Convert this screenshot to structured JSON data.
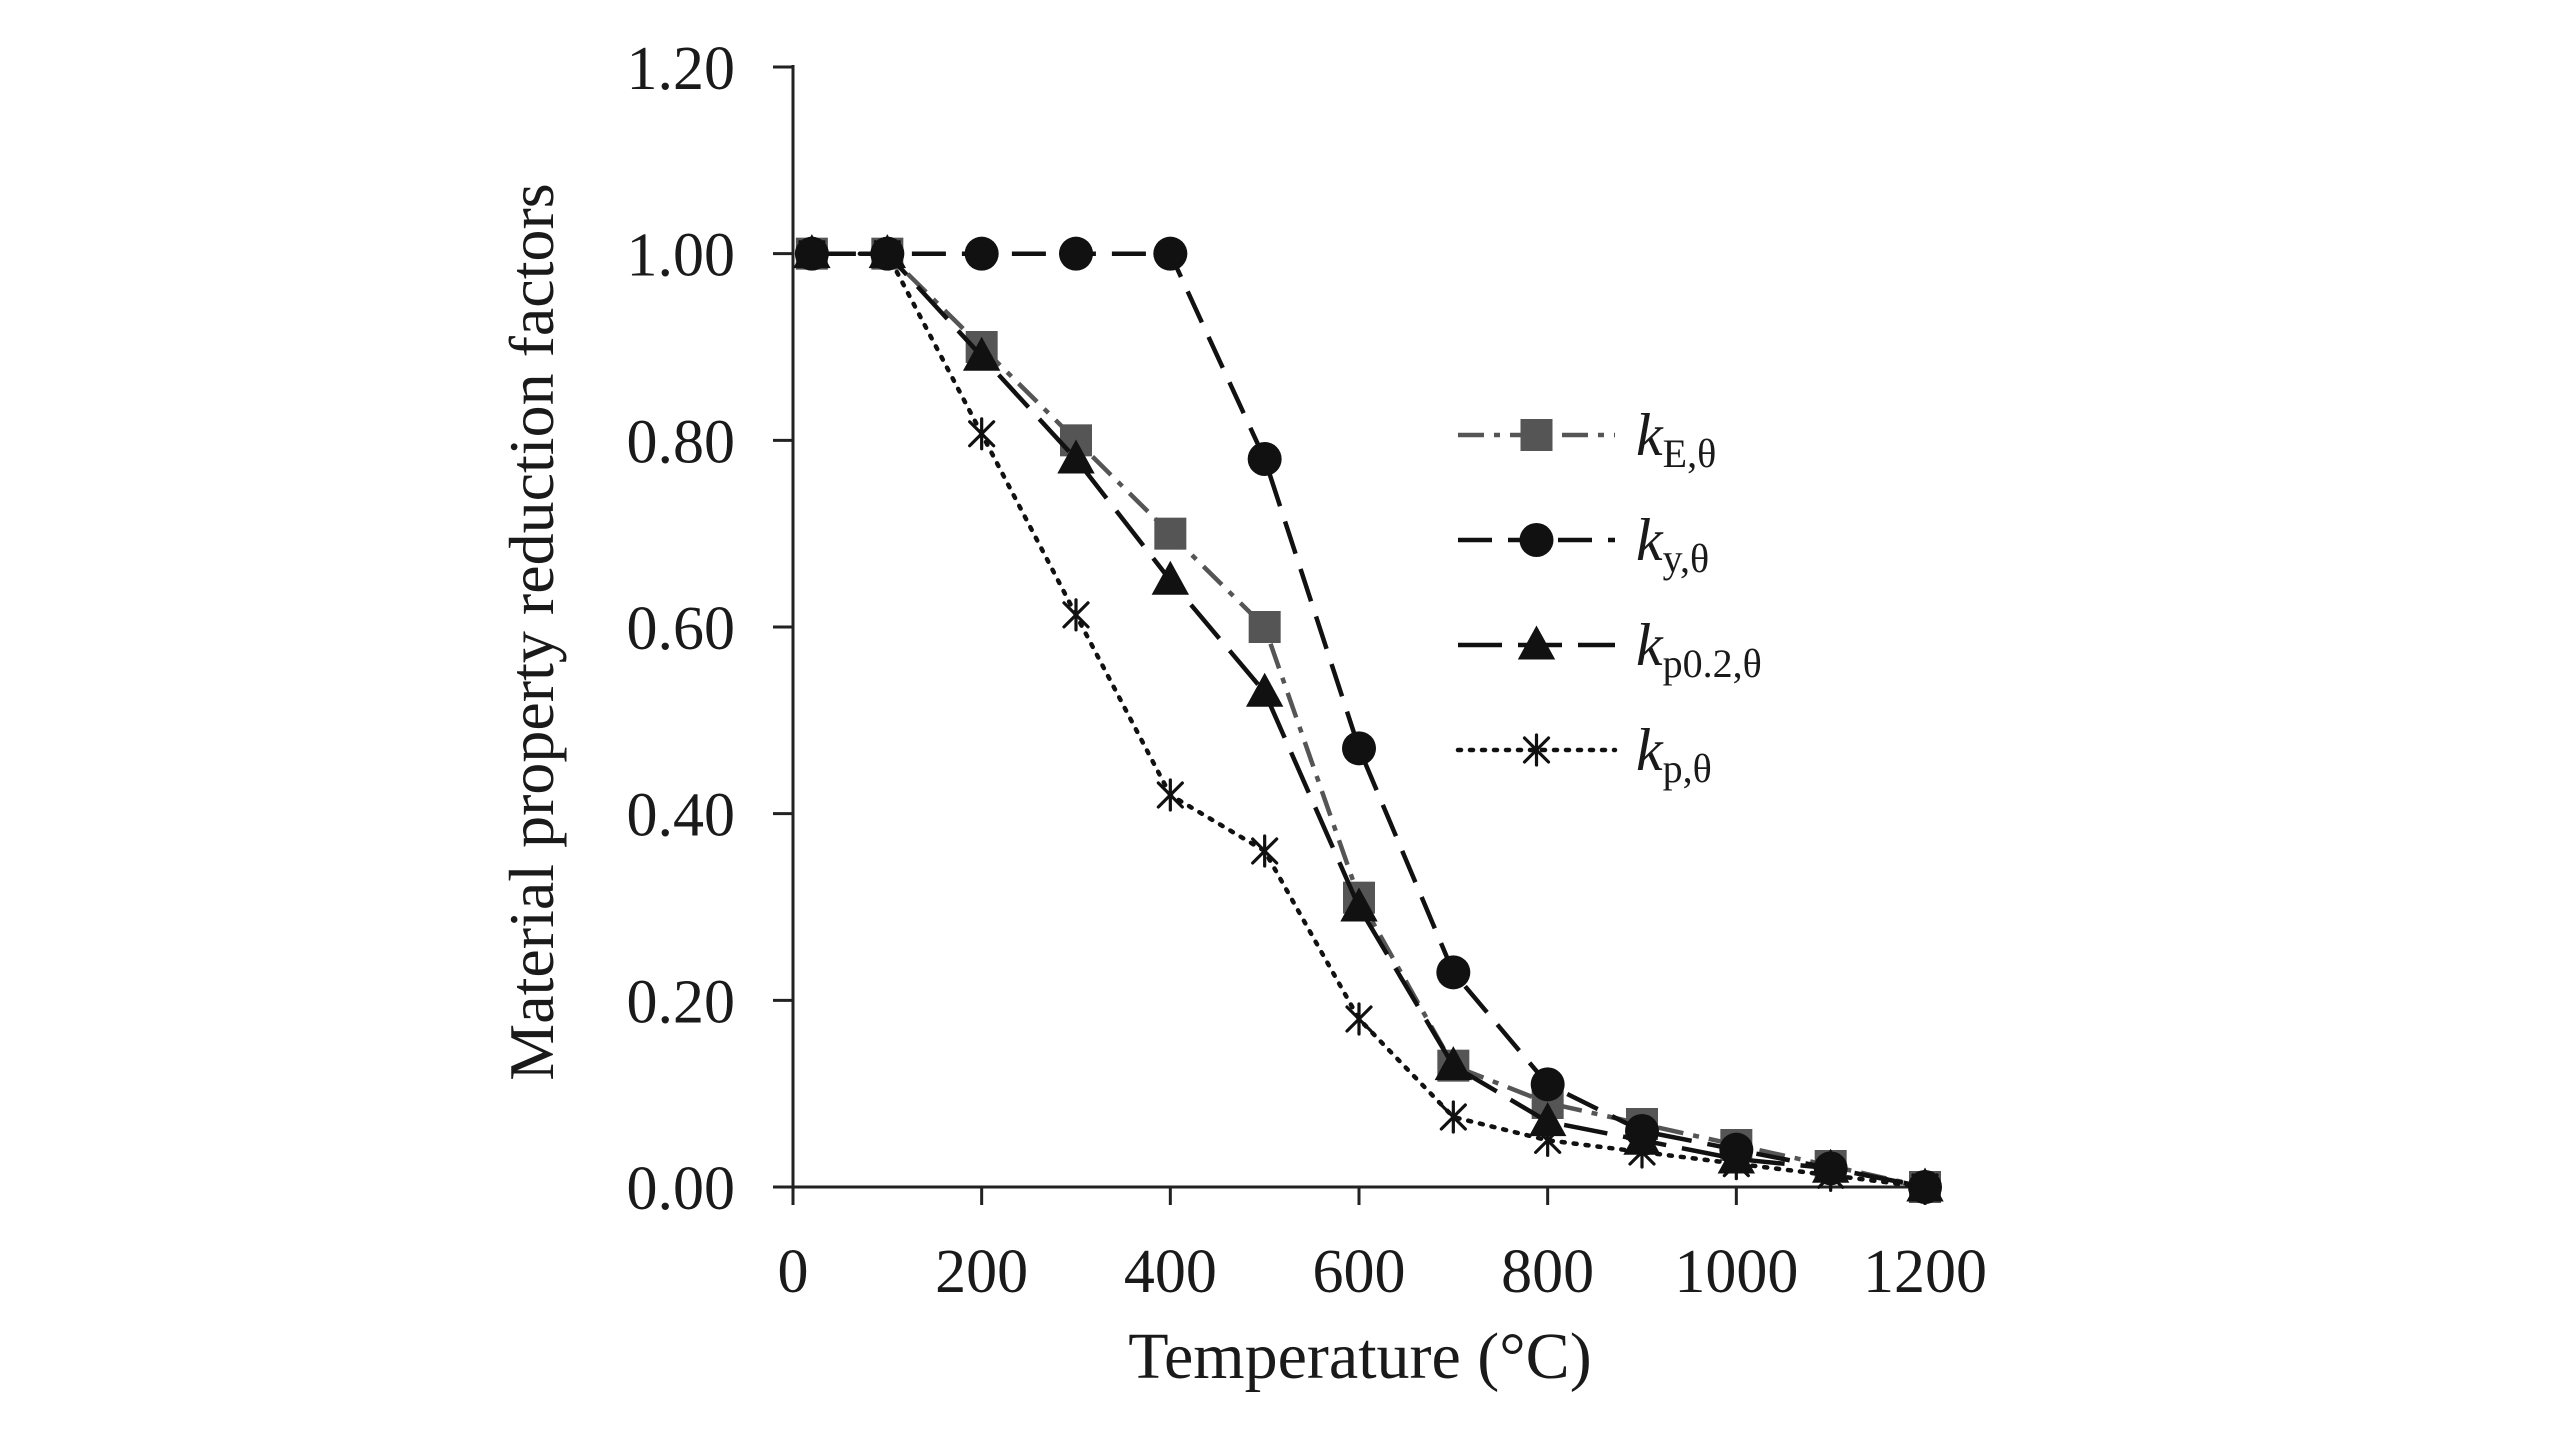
{
  "chart_data": {
    "type": "line",
    "title": "",
    "xlabel": "Temperature (°C)",
    "ylabel": "Material property reduction factors",
    "xlim": [
      0,
      1200
    ],
    "ylim": [
      0,
      1.2
    ],
    "x_ticks": [
      "0",
      "200",
      "400",
      "600",
      "800",
      "1000",
      "1200"
    ],
    "y_ticks": [
      "0.00",
      "0.20",
      "0.40",
      "0.60",
      "0.80",
      "1.00",
      "1.20"
    ],
    "grid": false,
    "legend_position": "right",
    "series": [
      {
        "name": "kE,θ",
        "label_main": "k",
        "label_sub": "E,θ",
        "marker": "square",
        "line_style": "dash-dot",
        "color": "#555555",
        "x": [
          20,
          100,
          200,
          300,
          400,
          500,
          600,
          700,
          800,
          900,
          1000,
          1100,
          1200
        ],
        "y": [
          1.0,
          1.0,
          0.9,
          0.8,
          0.7,
          0.6,
          0.31,
          0.13,
          0.09,
          0.0675,
          0.045,
          0.0225,
          0.0
        ]
      },
      {
        "name": "ky,θ",
        "label_main": "k",
        "label_sub": "y,θ",
        "marker": "circle",
        "line_style": "dash",
        "color": "#111111",
        "x": [
          20,
          100,
          200,
          300,
          400,
          500,
          600,
          700,
          800,
          900,
          1000,
          1100,
          1200
        ],
        "y": [
          1.0,
          1.0,
          1.0,
          1.0,
          1.0,
          0.78,
          0.47,
          0.23,
          0.11,
          0.06,
          0.04,
          0.02,
          0.0
        ]
      },
      {
        "name": "kp0.2,θ",
        "label_main": "k",
        "label_sub": "p0.2,θ",
        "marker": "triangle",
        "line_style": "long-dash",
        "color": "#111111",
        "x": [
          20,
          100,
          200,
          300,
          400,
          500,
          600,
          700,
          800,
          900,
          1000,
          1100,
          1200
        ],
        "y": [
          1.0,
          1.0,
          0.89,
          0.78,
          0.65,
          0.53,
          0.3,
          0.13,
          0.07,
          0.05,
          0.03,
          0.02,
          0.0
        ]
      },
      {
        "name": "kp,θ",
        "label_main": "k",
        "label_sub": "p,θ",
        "marker": "asterisk",
        "line_style": "dot",
        "color": "#111111",
        "x": [
          20,
          100,
          200,
          300,
          400,
          500,
          600,
          700,
          800,
          900,
          1000,
          1100,
          1200
        ],
        "y": [
          1.0,
          1.0,
          0.807,
          0.613,
          0.42,
          0.36,
          0.18,
          0.075,
          0.05,
          0.0375,
          0.025,
          0.0125,
          0.0
        ]
      }
    ]
  }
}
